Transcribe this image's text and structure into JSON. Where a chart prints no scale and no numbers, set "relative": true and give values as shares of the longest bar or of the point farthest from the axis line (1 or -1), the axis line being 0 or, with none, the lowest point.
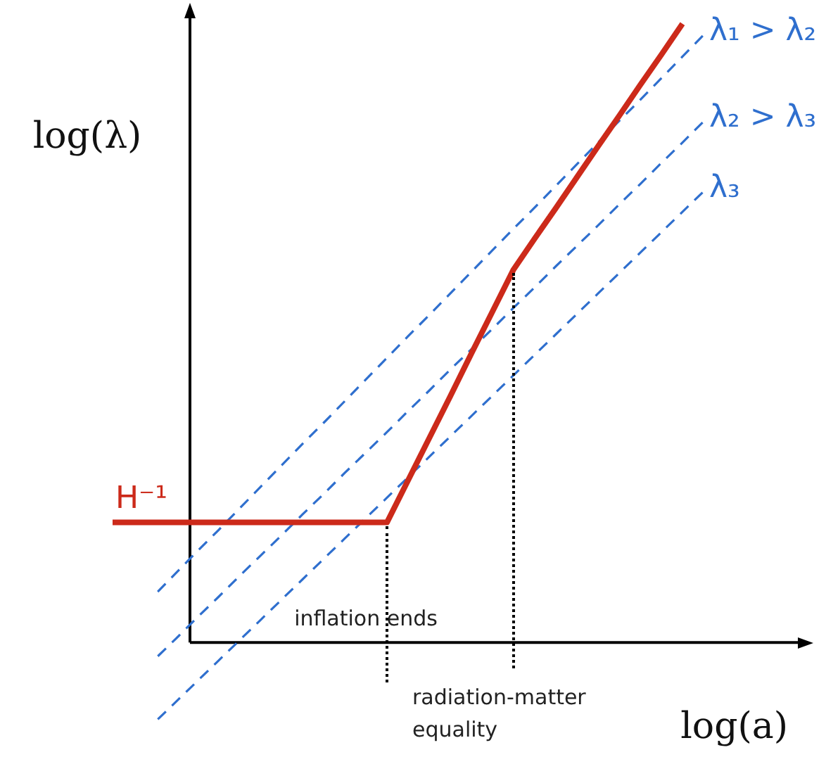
{
  "chart_data": {
    "type": "line",
    "relative": true,
    "xlabel": "log(a)",
    "ylabel": "log(λ)",
    "grid": false,
    "legend": false,
    "marker": "none",
    "categories": [
      null,
      null,
      null,
      null,
      null,
      null,
      null,
      null,
      null,
      null,
      null,
      null,
      null,
      null,
      null,
      null,
      null,
      null,
      null,
      null,
      null,
      null,
      null,
      null,
      null,
      null,
      null,
      null,
      null,
      null
    ],
    "series": [
      {
        "name": "H⁻¹",
        "color": "#cc2a1a",
        "line_style": "solid",
        "values": [
          null,
          0.194,
          0.194,
          0.194,
          0.194,
          0.194,
          0.194,
          0.194,
          0.194,
          0.194,
          0.194,
          0.194,
          0.194,
          0.194,
          0.194,
          0.262,
          0.33,
          0.398,
          0.467,
          0.535,
          0.603,
          0.653,
          0.702,
          0.752,
          0.802,
          0.851,
          0.901,
          0.95,
          1.0,
          null
        ]
      },
      {
        "name": "λ₁ > λ₂",
        "color": "#2f6fce",
        "line_style": "dashed",
        "values": [
          null,
          null,
          null,
          0.077,
          0.112,
          0.147,
          0.181,
          0.216,
          0.251,
          0.286,
          0.321,
          0.355,
          0.39,
          0.425,
          0.46,
          0.495,
          0.529,
          0.564,
          0.599,
          0.634,
          0.669,
          0.703,
          0.738,
          0.773,
          0.808,
          0.843,
          0.877,
          0.912,
          0.947,
          0.982
        ]
      },
      {
        "name": "λ₂ > λ₃",
        "color": "#2f6fce",
        "line_style": "dashed",
        "values": [
          null,
          null,
          null,
          -0.027,
          0.006,
          0.04,
          0.073,
          0.107,
          0.14,
          0.173,
          0.207,
          0.24,
          0.274,
          0.307,
          0.34,
          0.374,
          0.407,
          0.441,
          0.474,
          0.507,
          0.541,
          0.574,
          0.608,
          0.641,
          0.674,
          0.708,
          0.741,
          0.775,
          0.808,
          0.842
        ]
      },
      {
        "name": "λ₃",
        "color": "#2f6fce",
        "line_style": "dashed",
        "values": [
          null,
          null,
          null,
          -0.129,
          -0.096,
          -0.063,
          -0.03,
          0.003,
          0.036,
          0.069,
          0.102,
          0.135,
          0.168,
          0.201,
          0.234,
          0.267,
          0.3,
          0.333,
          0.366,
          0.399,
          0.432,
          0.465,
          0.498,
          0.531,
          0.564,
          0.597,
          0.63,
          0.663,
          0.696,
          0.729
        ]
      }
    ],
    "annotations": [
      "inflation ends",
      "radiation-matter equality"
    ]
  }
}
